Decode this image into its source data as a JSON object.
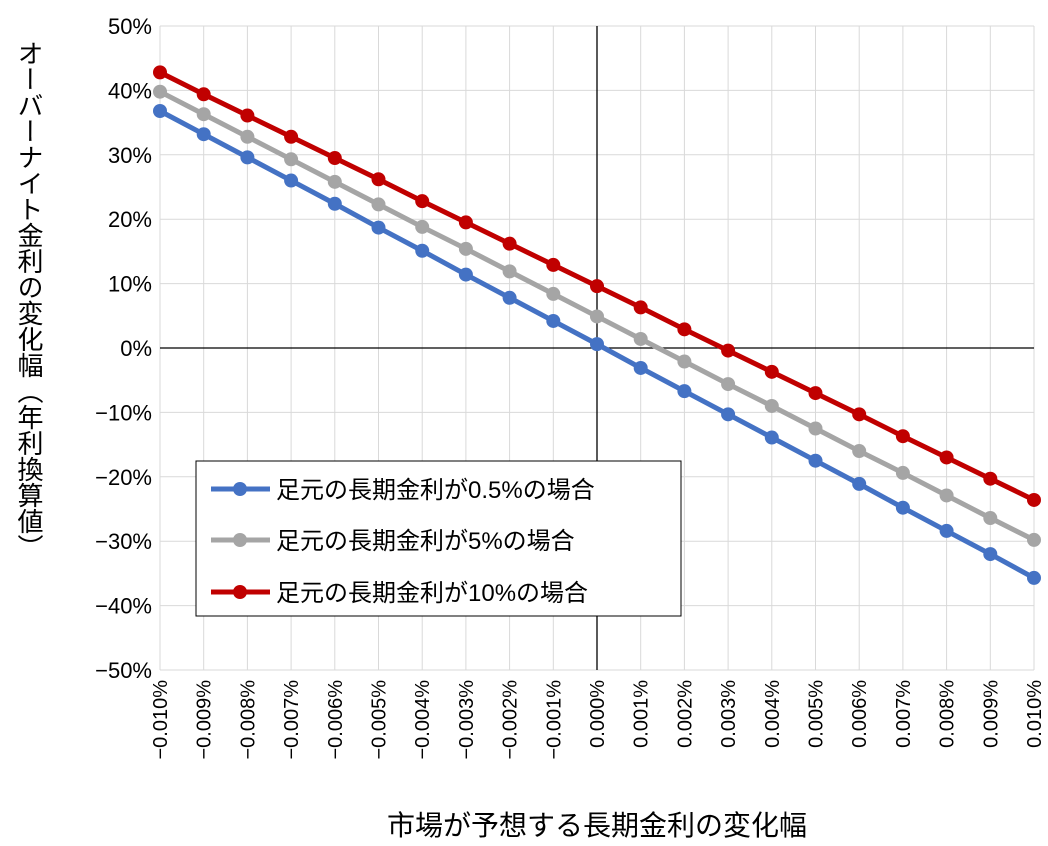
{
  "chart_data": {
    "type": "line",
    "title": "",
    "xlabel": "市場が予想する長期金利の変化幅",
    "ylabel": "オーバーナイト金利の変化幅（年利換算値）",
    "x": [
      -0.01,
      -0.009,
      -0.008,
      -0.007,
      -0.006,
      -0.005,
      -0.004,
      -0.003,
      -0.002,
      -0.001,
      0.0,
      0.001,
      0.002,
      0.003,
      0.004,
      0.005,
      0.006,
      0.007,
      0.008,
      0.009,
      0.01
    ],
    "x_tick_labels": [
      "−0.010%",
      "−0.009%",
      "−0.008%",
      "−0.007%",
      "−0.006%",
      "−0.005%",
      "−0.004%",
      "−0.003%",
      "−0.002%",
      "−0.001%",
      "0.000%",
      "0.001%",
      "0.002%",
      "0.003%",
      "0.004%",
      "0.005%",
      "0.006%",
      "0.007%",
      "0.008%",
      "0.009%",
      "0.010%"
    ],
    "y_tick_labels": [
      "50%",
      "40%",
      "30%",
      "20%",
      "10%",
      "0%",
      "−10%",
      "−20%",
      "−30%",
      "−40%",
      "−50%"
    ],
    "ylim": [
      -50,
      50
    ],
    "grid": true,
    "legend_position": "lower-left",
    "series": [
      {
        "name": "足元の長期金利が0.5%の場合",
        "color": "#4472C4",
        "values": [
          36.8,
          33.2,
          29.6,
          26.0,
          22.4,
          18.7,
          15.1,
          11.4,
          7.8,
          4.2,
          0.6,
          -3.1,
          -6.7,
          -10.3,
          -13.9,
          -17.5,
          -21.1,
          -24.8,
          -28.4,
          -32.0,
          -35.7
        ]
      },
      {
        "name": "足元の長期金利が5%の場合",
        "color": "#A5A5A5",
        "values": [
          39.8,
          36.3,
          32.8,
          29.3,
          25.8,
          22.3,
          18.8,
          15.4,
          11.9,
          8.4,
          4.9,
          1.4,
          -2.1,
          -5.6,
          -9.0,
          -12.5,
          -16.0,
          -19.4,
          -22.9,
          -26.4,
          -29.8
        ]
      },
      {
        "name": "足元の長期金利が10%の場合",
        "color": "#C00000",
        "values": [
          42.8,
          39.4,
          36.1,
          32.8,
          29.5,
          26.2,
          22.8,
          19.5,
          16.2,
          12.9,
          9.6,
          6.3,
          2.9,
          -0.4,
          -3.7,
          -7.0,
          -10.3,
          -13.7,
          -17.0,
          -20.3,
          -23.6
        ]
      }
    ]
  }
}
